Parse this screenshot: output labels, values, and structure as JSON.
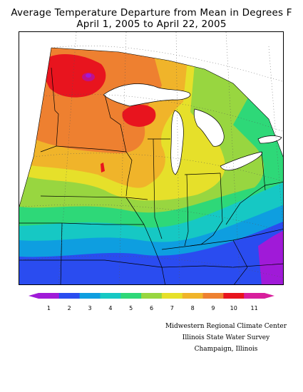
{
  "title": "Average Temperature Departure from Mean in Degrees F",
  "subtitle": "April 1, 2005 to April 22, 2005",
  "legend": {
    "labels": [
      "1",
      "2",
      "3",
      "4",
      "5",
      "6",
      "7",
      "8",
      "9",
      "10",
      "11"
    ],
    "colors": [
      "#a01ad8",
      "#2a4cf0",
      "#0e9ee0",
      "#16c8c4",
      "#2ed878",
      "#98d640",
      "#e6e02a",
      "#f0b42a",
      "#ee8030",
      "#e8141e",
      "#d81e9c"
    ]
  },
  "credits": {
    "line1": "Midwestern Regional Climate Center",
    "line2": "Illinois State Water Survey",
    "line3": "Champaign, Illinois"
  }
}
